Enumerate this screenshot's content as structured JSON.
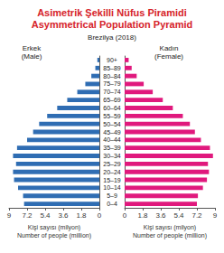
{
  "chart_data": {
    "type": "bar",
    "orientation": "horizontal",
    "title": "Asimetrik Şekilli Nüfus Piramidi\nAsymmetrical Population Pyramid",
    "subtitle": "Brezilya (2018)",
    "x_label": "Kişi sayısı (milyon)\nNumber of people (million)",
    "categories": [
      "0–4",
      "5–9",
      "10–14",
      "15–19",
      "20–24",
      "25–29",
      "30–34",
      "35–39",
      "40–44",
      "45–49",
      "50–54",
      "55–59",
      "60–64",
      "65–69",
      "70–74",
      "75–79",
      "80–84",
      "85–89",
      "90+"
    ],
    "series": [
      {
        "name": "Erkek\n(Male)",
        "color": "#2f6db3",
        "values": [
          7.5,
          7.6,
          8.1,
          8.5,
          8.6,
          8.3,
          8.6,
          8.2,
          7.2,
          6.6,
          6.0,
          5.2,
          4.2,
          3.2,
          2.2,
          1.4,
          0.8,
          0.4,
          0.2
        ]
      },
      {
        "name": "Kadın\n(Female)",
        "color": "#e0197d",
        "values": [
          7.2,
          7.3,
          7.8,
          8.2,
          8.4,
          8.3,
          8.8,
          8.5,
          7.6,
          7.0,
          6.5,
          5.8,
          4.8,
          3.8,
          2.8,
          1.9,
          1.2,
          0.7,
          0.4
        ]
      }
    ],
    "xlim": [
      0,
      9
    ],
    "xticks": [
      0,
      1.8,
      3.6,
      5.4,
      7.2,
      9
    ],
    "grid": false
  }
}
